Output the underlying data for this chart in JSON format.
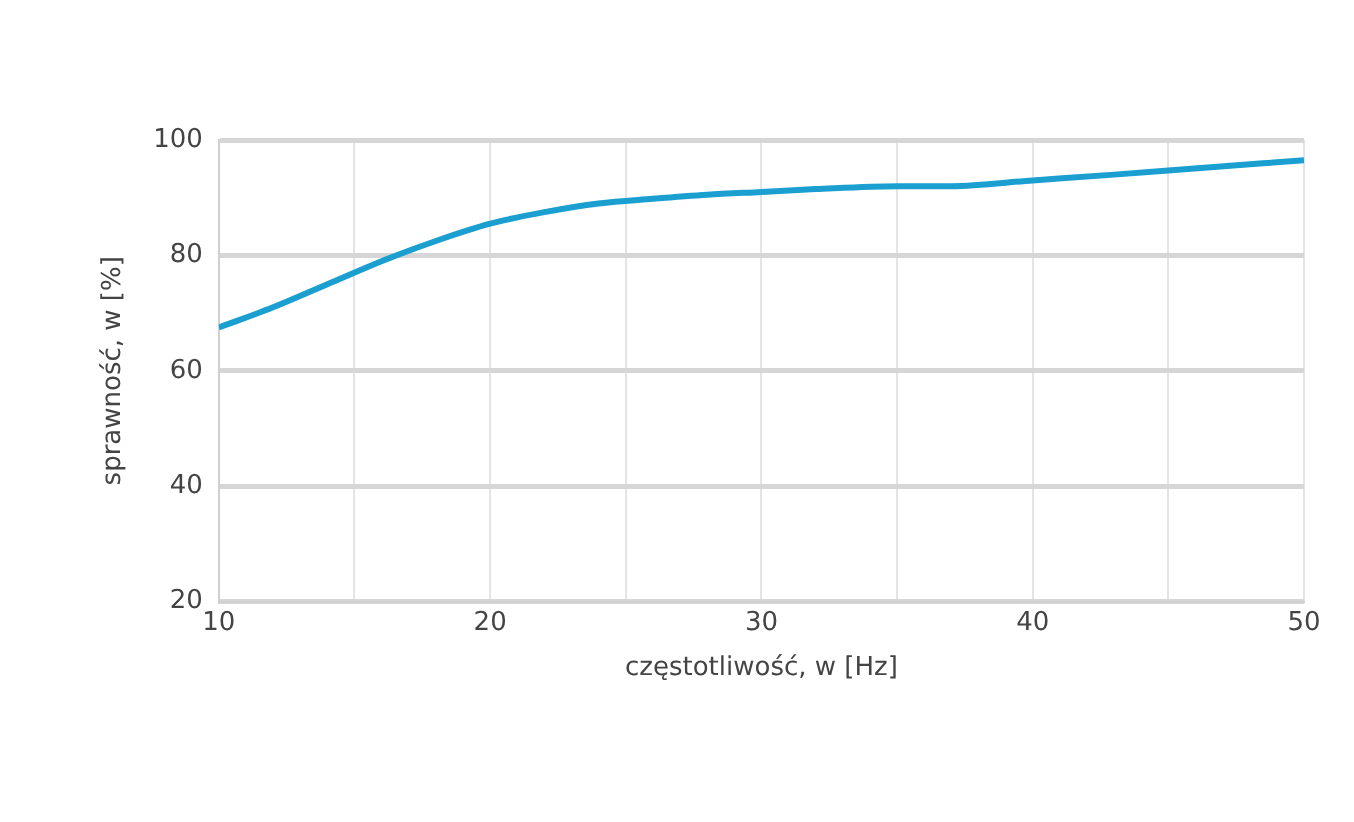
{
  "chart_data": {
    "type": "line",
    "xlabel": "częstotliwość, w [Hz]",
    "ylabel": "sprawność, w [%]",
    "x": [
      10,
      12,
      14,
      16,
      18,
      20,
      22,
      24,
      26,
      28,
      30,
      32,
      35,
      37,
      40,
      43,
      45,
      50
    ],
    "series": [
      {
        "color": "#1a9fd0",
        "values": [
          67.5,
          71,
          75,
          79,
          82.5,
          85.5,
          87.5,
          89,
          89.8,
          90.5,
          91,
          91.5,
          92,
          92,
          93,
          94,
          94.7,
          96.5
        ]
      }
    ],
    "xlim": [
      10,
      50
    ],
    "xticks": [
      10,
      {
        "value": 15,
        "label": null
      },
      20,
      {
        "value": 25,
        "label": null
      },
      30,
      {
        "value": 35,
        "label": null
      },
      40,
      {
        "value": 45,
        "label": null
      },
      50
    ],
    "ylim": [
      20,
      100
    ],
    "yticks": [
      20,
      40,
      60,
      80,
      100
    ],
    "grid": true,
    "legend": false,
    "marker": "none",
    "line_style": "solid"
  }
}
